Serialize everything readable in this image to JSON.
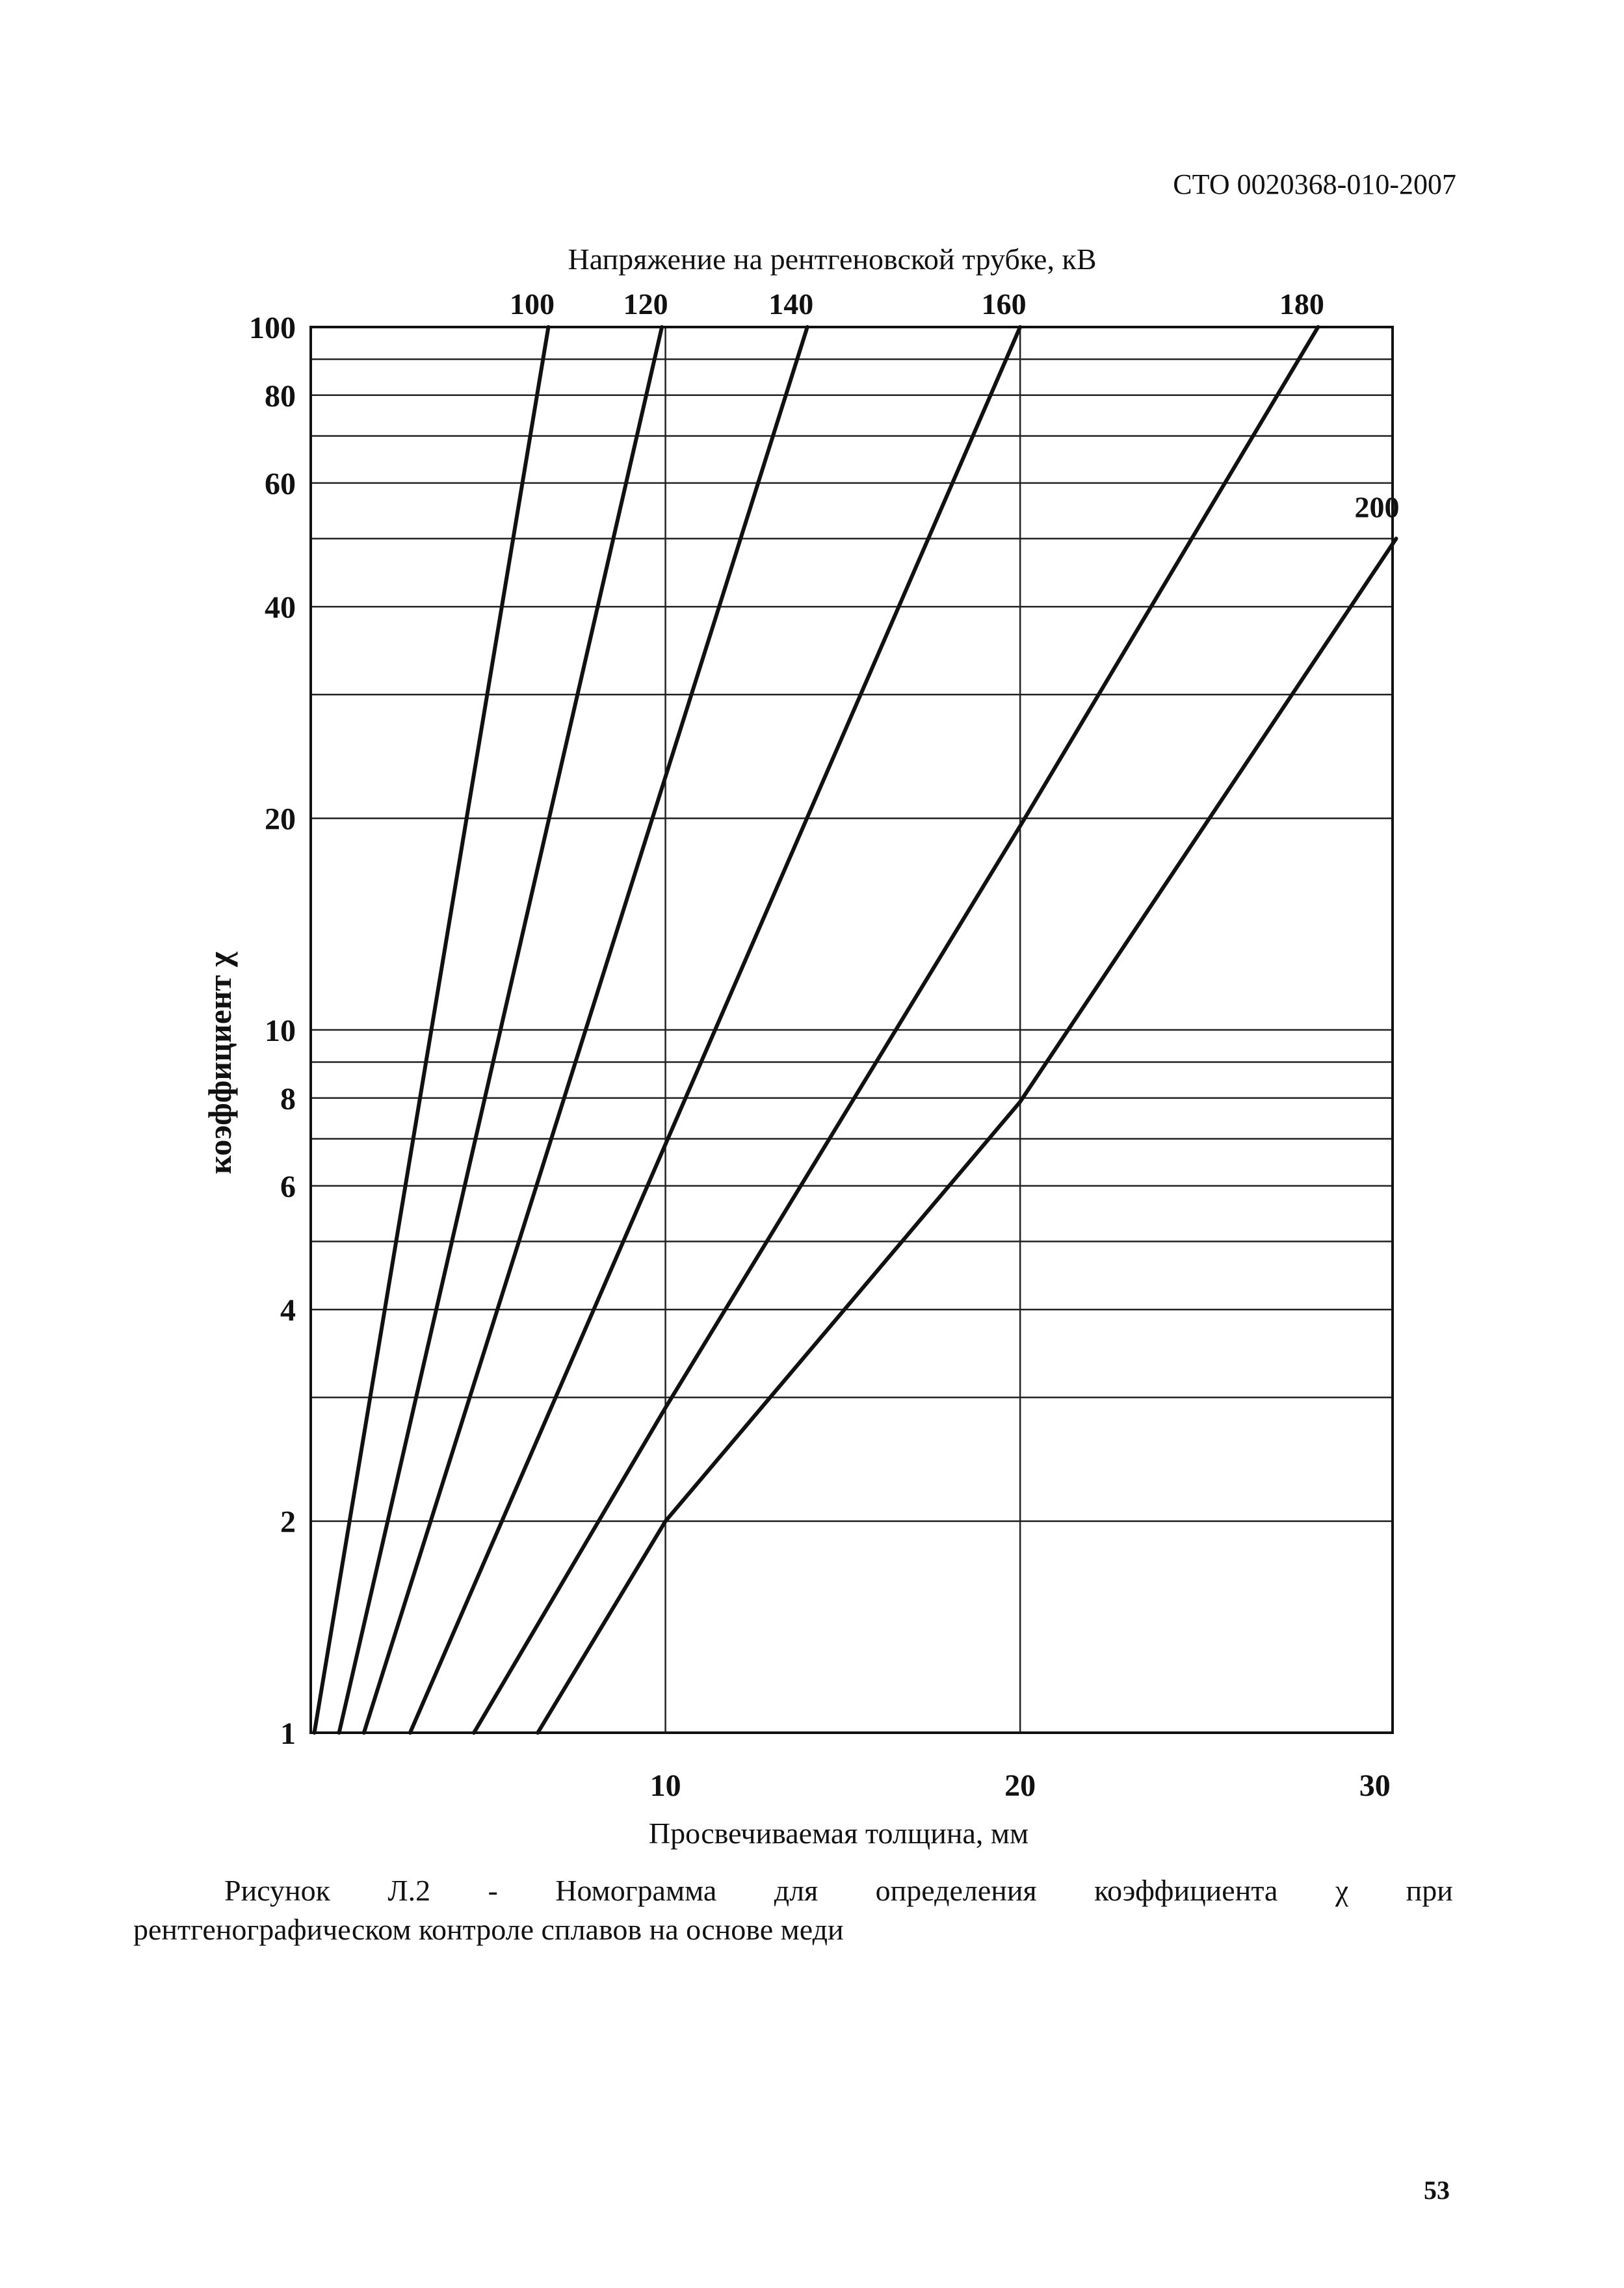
{
  "header": {
    "doc_code": "СТО 0020368-010-2007"
  },
  "chart_data": {
    "type": "line",
    "title": "Напряжение на рентгеновской трубке, кВ",
    "xlabel": "Просвечиваемая толщина, мм",
    "ylabel": "коэффициент χ",
    "xlim": [
      0,
      30.5
    ],
    "ylim": [
      1,
      100
    ],
    "yscale": "log",
    "x_ticks": [
      10,
      20,
      30
    ],
    "x_tick_labels": [
      "10",
      "20",
      "30"
    ],
    "y_ticks": [
      1,
      2,
      4,
      6,
      8,
      10,
      20,
      40,
      60,
      80,
      100
    ],
    "y_tick_labels": [
      "1",
      "2",
      "4",
      "6",
      "8",
      "10",
      "20",
      "40",
      "60",
      "80",
      "100"
    ],
    "h_gridlines": [
      1,
      2,
      3,
      4,
      5,
      6,
      7,
      8,
      9,
      10,
      20,
      30,
      40,
      50,
      60,
      70,
      80,
      90,
      100
    ],
    "v_gridlines": [
      10,
      20
    ],
    "grid": true,
    "series": [
      {
        "name": "100",
        "x": [
          0.1,
          6.7
        ],
        "y": [
          1,
          100
        ]
      },
      {
        "name": "120",
        "x": [
          0.8,
          9.9
        ],
        "y": [
          1,
          100
        ]
      },
      {
        "name": "140",
        "x": [
          1.5,
          14.0
        ],
        "y": [
          1,
          100
        ]
      },
      {
        "name": "160",
        "x": [
          2.8,
          20.0
        ],
        "y": [
          1,
          100
        ]
      },
      {
        "name": "180",
        "x": [
          4.6,
          10.0,
          20.0,
          28.4
        ],
        "y": [
          1,
          2.9,
          19.5,
          100
        ]
      },
      {
        "name": "200",
        "x": [
          6.4,
          10.0,
          20.0,
          30.6
        ],
        "y": [
          1,
          2.0,
          7.9,
          50
        ]
      }
    ]
  },
  "caption": {
    "line1_words": [
      "Рисунок",
      "Л.2",
      "-",
      "Номограмма",
      "для",
      "определения",
      "коэффициента",
      "χ",
      "при"
    ],
    "line2": "рентгенографическом контроле сплавов на основе меди"
  },
  "page_number": "53"
}
